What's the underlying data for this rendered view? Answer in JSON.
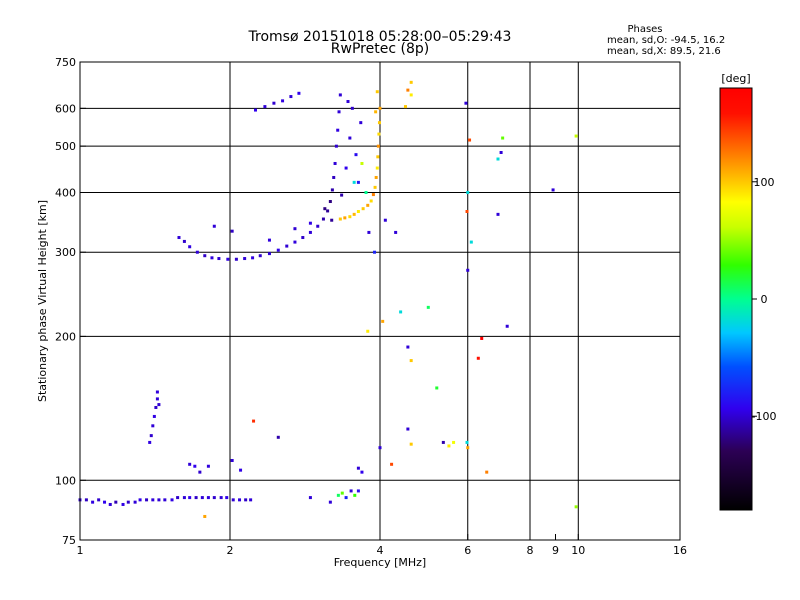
{
  "title": "Tromsø 20151018 05:28:00–05:29:43",
  "subtitle": "RwPretec (8p)",
  "phase_stats": {
    "heading": "Phases",
    "line_o": "mean, sd,O: -94.5, 16.2",
    "line_x": "mean, sd,X:  89.5, 21.6"
  },
  "colorbar": {
    "unit_label": "[deg]",
    "range": [
      -180,
      180
    ],
    "ticks": [
      {
        "value": 100,
        "label": "100"
      },
      {
        "value": 0,
        "label": "0"
      },
      {
        "value": -100,
        "label": "-100"
      }
    ]
  },
  "chart_data": {
    "type": "scatter",
    "xlabel": "Frequency [MHz]",
    "ylabel": "Stationary phase Virtual Height [km]",
    "x_scale": "log",
    "y_scale": "log",
    "xlim": [
      1,
      16
    ],
    "ylim": [
      75,
      750
    ],
    "x_ticks": [
      {
        "value": 1,
        "label": "1"
      },
      {
        "value": 2,
        "label": "2"
      },
      {
        "value": 4,
        "label": "4"
      },
      {
        "value": 6,
        "label": "6"
      },
      {
        "value": 8,
        "label": "8"
      },
      {
        "value": 9,
        "label": "9"
      },
      {
        "value": 10,
        "label": "10"
      },
      {
        "value": 16,
        "label": "16"
      }
    ],
    "y_ticks": [
      {
        "value": 75,
        "label": "75"
      },
      {
        "value": 100,
        "label": "100"
      },
      {
        "value": 200,
        "label": "200"
      },
      {
        "value": 300,
        "label": "300"
      },
      {
        "value": 400,
        "label": "400"
      },
      {
        "value": 500,
        "label": "500"
      },
      {
        "value": 600,
        "label": "600"
      },
      {
        "value": 750,
        "label": "750"
      }
    ],
    "x_gridlines": [
      2,
      4,
      6,
      8,
      10
    ],
    "y_gridlines": [
      100,
      200,
      300,
      400,
      500,
      600
    ],
    "point_value_unit": "phase [deg]",
    "points": [
      [
        1.0,
        91,
        -100
      ],
      [
        1.03,
        91,
        -105
      ],
      [
        1.06,
        90,
        -98
      ],
      [
        1.09,
        91,
        -102
      ],
      [
        1.12,
        90,
        -95
      ],
      [
        1.15,
        89,
        -100
      ],
      [
        1.18,
        90,
        -108
      ],
      [
        1.22,
        89,
        -97
      ],
      [
        1.25,
        90,
        -103
      ],
      [
        1.29,
        90,
        -100
      ],
      [
        1.32,
        91,
        -96
      ],
      [
        1.36,
        91,
        -104
      ],
      [
        1.4,
        91,
        -99
      ],
      [
        1.44,
        91,
        -101
      ],
      [
        1.48,
        91,
        -100
      ],
      [
        1.53,
        91,
        -97
      ],
      [
        1.57,
        92,
        -103
      ],
      [
        1.62,
        92,
        -100
      ],
      [
        1.66,
        92,
        -95
      ],
      [
        1.71,
        92,
        -104
      ],
      [
        1.76,
        92,
        -100
      ],
      [
        1.81,
        92,
        -98
      ],
      [
        1.86,
        92,
        -102
      ],
      [
        1.92,
        92,
        -100
      ],
      [
        1.97,
        92,
        -96
      ],
      [
        2.03,
        91,
        -101
      ],
      [
        2.09,
        91,
        -99
      ],
      [
        2.15,
        91,
        -103
      ],
      [
        2.2,
        91,
        -100
      ],
      [
        1.38,
        120,
        -98
      ],
      [
        1.39,
        124,
        -102
      ],
      [
        1.4,
        130,
        -100
      ],
      [
        1.41,
        136,
        -97
      ],
      [
        1.42,
        142,
        -103
      ],
      [
        1.43,
        148,
        -100
      ],
      [
        1.43,
        153,
        -99
      ],
      [
        1.44,
        144,
        -101
      ],
      [
        1.66,
        108,
        -100
      ],
      [
        1.7,
        107,
        -95
      ],
      [
        1.74,
        104,
        -102
      ],
      [
        1.81,
        107,
        -99
      ],
      [
        2.02,
        110,
        -100
      ],
      [
        2.1,
        105,
        -97
      ],
      [
        3.3,
        93,
        10
      ],
      [
        3.36,
        94,
        40
      ],
      [
        3.42,
        92,
        -80
      ],
      [
        3.5,
        95,
        -100
      ],
      [
        3.56,
        93,
        30
      ],
      [
        3.62,
        95,
        -90
      ],
      [
        3.62,
        106,
        -100
      ],
      [
        3.68,
        104,
        -95
      ],
      [
        1.78,
        84,
        110
      ],
      [
        2.23,
        133,
        150
      ],
      [
        2.5,
        123,
        -110
      ],
      [
        2.9,
        92,
        -100
      ],
      [
        3.18,
        90,
        -100
      ],
      [
        4.0,
        117,
        -100
      ],
      [
        4.22,
        108,
        140
      ],
      [
        4.55,
        128,
        -100
      ],
      [
        4.62,
        119,
        100
      ],
      [
        5.2,
        156,
        20
      ],
      [
        5.36,
        120,
        -110
      ],
      [
        5.5,
        118,
        90
      ],
      [
        5.62,
        120,
        80
      ],
      [
        5.98,
        120,
        -20
      ],
      [
        6.0,
        117,
        110
      ],
      [
        6.55,
        104,
        120
      ],
      [
        9.9,
        88,
        50
      ],
      [
        1.58,
        322,
        -100
      ],
      [
        1.62,
        316,
        -102
      ],
      [
        1.66,
        308,
        -98
      ],
      [
        1.72,
        300,
        -100
      ],
      [
        1.78,
        295,
        -104
      ],
      [
        1.84,
        292,
        -99
      ],
      [
        1.9,
        291,
        -101
      ],
      [
        1.98,
        290,
        -97
      ],
      [
        2.06,
        290,
        -103
      ],
      [
        2.14,
        291,
        -100
      ],
      [
        2.22,
        292,
        -98
      ],
      [
        2.3,
        295,
        -102
      ],
      [
        2.4,
        298,
        -100
      ],
      [
        2.5,
        303,
        -96
      ],
      [
        2.6,
        309,
        -101
      ],
      [
        2.7,
        315,
        -99
      ],
      [
        2.8,
        322,
        -103
      ],
      [
        2.9,
        330,
        -100
      ],
      [
        3.0,
        340,
        -102
      ],
      [
        3.08,
        352,
        -110
      ],
      [
        3.14,
        366,
        -115
      ],
      [
        3.18,
        383,
        -120
      ],
      [
        3.21,
        405,
        -110
      ],
      [
        3.23,
        430,
        -105
      ],
      [
        3.25,
        460,
        -100
      ],
      [
        3.27,
        500,
        -102
      ],
      [
        3.29,
        540,
        -98
      ],
      [
        3.31,
        590,
        -100
      ],
      [
        3.33,
        640,
        -101
      ],
      [
        1.86,
        340,
        -100
      ],
      [
        2.02,
        332,
        -104
      ],
      [
        2.4,
        318,
        -99
      ],
      [
        2.7,
        336,
        -101
      ],
      [
        2.9,
        345,
        -97
      ],
      [
        3.1,
        370,
        -120
      ],
      [
        3.2,
        350,
        -115
      ],
      [
        3.35,
        395,
        -110
      ],
      [
        3.42,
        450,
        -95
      ],
      [
        3.48,
        520,
        -100
      ],
      [
        3.52,
        600,
        -103
      ],
      [
        3.45,
        620,
        -100
      ],
      [
        3.58,
        480,
        -90
      ],
      [
        3.62,
        420,
        -85
      ],
      [
        3.66,
        560,
        -100
      ],
      [
        2.25,
        595,
        -95
      ],
      [
        2.35,
        605,
        -100
      ],
      [
        2.45,
        615,
        -102
      ],
      [
        2.55,
        622,
        -98
      ],
      [
        2.65,
        635,
        -100
      ],
      [
        2.75,
        645,
        -95
      ],
      [
        3.33,
        352,
        100
      ],
      [
        3.4,
        354,
        110
      ],
      [
        3.48,
        356,
        95
      ],
      [
        3.55,
        360,
        105
      ],
      [
        3.62,
        365,
        90
      ],
      [
        3.7,
        370,
        100
      ],
      [
        3.78,
        376,
        110
      ],
      [
        3.84,
        384,
        95
      ],
      [
        3.88,
        396,
        120
      ],
      [
        3.91,
        410,
        100
      ],
      [
        3.93,
        430,
        110
      ],
      [
        3.95,
        450,
        90
      ],
      [
        3.96,
        475,
        100
      ],
      [
        3.97,
        500,
        115
      ],
      [
        3.98,
        530,
        95
      ],
      [
        3.99,
        560,
        100
      ],
      [
        4.0,
        600,
        110
      ],
      [
        3.92,
        590,
        105
      ],
      [
        3.95,
        650,
        100
      ],
      [
        3.75,
        400,
        0
      ],
      [
        3.55,
        420,
        -20
      ],
      [
        3.68,
        460,
        60
      ],
      [
        3.8,
        330,
        -100
      ],
      [
        3.9,
        300,
        -80
      ],
      [
        4.1,
        350,
        -100
      ],
      [
        4.3,
        330,
        -100
      ],
      [
        4.05,
        215,
        110
      ],
      [
        3.78,
        205,
        90
      ],
      [
        4.4,
        225,
        -20
      ],
      [
        4.55,
        190,
        -100
      ],
      [
        4.62,
        178,
        100
      ],
      [
        5.0,
        230,
        10
      ],
      [
        4.55,
        655,
        120
      ],
      [
        4.62,
        640,
        90
      ],
      [
        4.5,
        605,
        100
      ],
      [
        4.62,
        680,
        100
      ],
      [
        5.98,
        365,
        140
      ],
      [
        6.0,
        275,
        -100
      ],
      [
        5.95,
        615,
        -100
      ],
      [
        6.0,
        400,
        -20
      ],
      [
        6.1,
        315,
        -20
      ],
      [
        6.3,
        180,
        160
      ],
      [
        6.4,
        198,
        180
      ],
      [
        7.0,
        485,
        -100
      ],
      [
        7.05,
        520,
        40
      ],
      [
        6.9,
        360,
        -100
      ],
      [
        7.2,
        210,
        -100
      ],
      [
        8.9,
        405,
        -100
      ],
      [
        9.9,
        525,
        60
      ],
      [
        6.9,
        470,
        -20
      ],
      [
        6.05,
        515,
        140
      ]
    ]
  }
}
